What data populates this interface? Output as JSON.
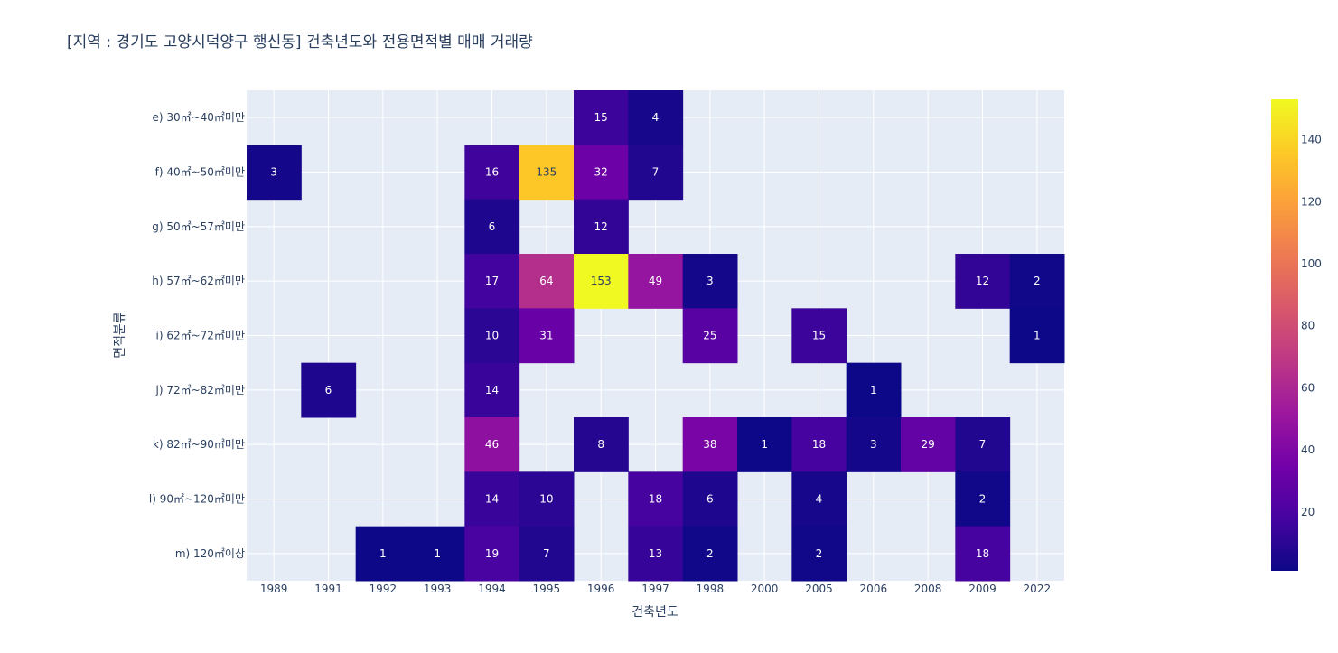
{
  "chart_data": {
    "type": "heatmap",
    "title": "[지역 : 경기도 고양시덕양구 행신동] 건축년도와 전용면적별 매매 거래량",
    "xlabel": "건축년도",
    "ylabel": "면적분류",
    "x": [
      "1989",
      "1991",
      "1992",
      "1993",
      "1994",
      "1995",
      "1996",
      "1997",
      "1998",
      "2000",
      "2005",
      "2006",
      "2008",
      "2009",
      "2022"
    ],
    "y": [
      "e) 30㎡~40㎡미만",
      "f) 40㎡~50㎡미만",
      "g) 50㎡~57㎡미만",
      "h) 57㎡~62㎡미만",
      "i) 62㎡~72㎡미만",
      "j) 72㎡~82㎡미만",
      "k) 82㎡~90㎡미만",
      "l) 90㎡~120㎡미만",
      "m) 120㎡이상"
    ],
    "z": [
      [
        null,
        null,
        null,
        null,
        null,
        null,
        15,
        4,
        null,
        null,
        null,
        null,
        null,
        null,
        null
      ],
      [
        3,
        null,
        null,
        null,
        16,
        135,
        32,
        7,
        null,
        null,
        null,
        null,
        null,
        null,
        null
      ],
      [
        null,
        null,
        null,
        null,
        6,
        null,
        12,
        null,
        null,
        null,
        null,
        null,
        null,
        null,
        null
      ],
      [
        null,
        null,
        null,
        null,
        17,
        64,
        153,
        49,
        3,
        null,
        null,
        null,
        null,
        12,
        2
      ],
      [
        null,
        null,
        null,
        null,
        10,
        31,
        null,
        null,
        25,
        null,
        15,
        null,
        null,
        null,
        1
      ],
      [
        null,
        6,
        null,
        null,
        14,
        null,
        null,
        null,
        null,
        null,
        null,
        1,
        null,
        null,
        null
      ],
      [
        null,
        null,
        null,
        null,
        46,
        null,
        8,
        null,
        38,
        1,
        18,
        3,
        29,
        7,
        null
      ],
      [
        null,
        null,
        null,
        null,
        14,
        10,
        null,
        18,
        6,
        null,
        4,
        null,
        null,
        2,
        null
      ],
      [
        null,
        null,
        1,
        1,
        19,
        7,
        null,
        13,
        2,
        null,
        2,
        null,
        null,
        18,
        null
      ]
    ],
    "zrange": [
      1,
      153
    ],
    "colorscale": [
      "#0d0887",
      "#46039f",
      "#7201a8",
      "#9c179e",
      "#bd3786",
      "#d8576b",
      "#ed7953",
      "#fb9f3a",
      "#fdca26",
      "#f0f921"
    ],
    "colorbar_ticks": [
      20,
      40,
      60,
      80,
      100,
      120,
      140
    ],
    "colorbar_tick_labels": [
      "20",
      "40",
      "60",
      "80",
      "100",
      "120",
      "140"
    ],
    "grid": true,
    "legend": "right"
  }
}
